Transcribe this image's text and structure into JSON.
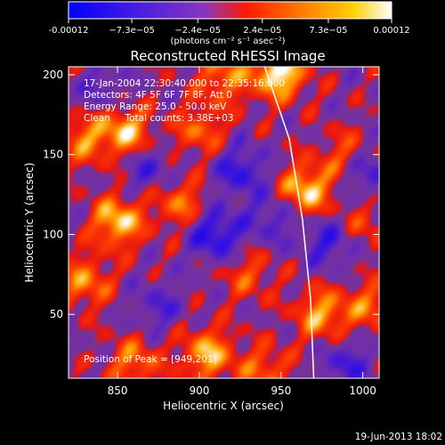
{
  "colorbar": {
    "tick_labels": [
      "-0.00012",
      "−7.3e−05",
      "−2.4e−05",
      "2.4e−05",
      "7.3e−05",
      "0.00012"
    ],
    "tick_values": [
      -0.00012,
      -7.3e-05,
      -2.4e-05,
      2.4e-05,
      7.3e-05,
      0.00012
    ],
    "range": [
      -0.00012,
      0.00012
    ],
    "unit_label": "(photons cm⁻² s⁻¹ asec⁻²)",
    "colormap": [
      "#0000ff",
      "#7a2fd0",
      "#ff1a00",
      "#ff9a00",
      "#ffffff"
    ]
  },
  "chart_data": {
    "type": "heatmap",
    "title": "Reconstructed RHESSI Image",
    "xlabel": "Heliocentric X (arcsec)",
    "ylabel": "Heliocentric Y (arcsec)",
    "xlim": [
      820,
      1010
    ],
    "ylim": [
      10,
      205
    ],
    "x_ticks": [
      850,
      900,
      950,
      1000
    ],
    "y_ticks": [
      50,
      100,
      150,
      200
    ],
    "annotations": [
      "17-Jan-2004 22:30:40.000 to 22:35:16.000",
      "Detectors: 4F 5F 6F 7F 8F, Att 0",
      "Energy Range: 25.0 - 50.0 keV",
      "Clean     Total counts: 3.38E+03"
    ],
    "peak_label": "Position of Peak = [949,201]",
    "peak": {
      "x": 949,
      "y": 201
    },
    "limb": [
      [
        940,
        205
      ],
      [
        955,
        160
      ],
      [
        963,
        110
      ],
      [
        968,
        60
      ],
      [
        970,
        10
      ]
    ],
    "sources": [
      {
        "x": 949,
        "y": 201,
        "v": 1.0
      },
      {
        "x": 915,
        "y": 198,
        "v": 0.6
      },
      {
        "x": 855,
        "y": 165,
        "v": 0.75
      },
      {
        "x": 830,
        "y": 160,
        "v": 0.55
      },
      {
        "x": 900,
        "y": 165,
        "v": 0.5
      },
      {
        "x": 965,
        "y": 128,
        "v": 0.85
      },
      {
        "x": 990,
        "y": 150,
        "v": 0.45
      },
      {
        "x": 850,
        "y": 108,
        "v": 0.85
      },
      {
        "x": 888,
        "y": 120,
        "v": 0.55
      },
      {
        "x": 830,
        "y": 70,
        "v": 0.6
      },
      {
        "x": 975,
        "y": 50,
        "v": 0.7
      },
      {
        "x": 1005,
        "y": 55,
        "v": 0.5
      },
      {
        "x": 930,
        "y": 75,
        "v": 0.4
      },
      {
        "x": 905,
        "y": 25,
        "v": 0.75
      },
      {
        "x": 860,
        "y": 20,
        "v": 0.55
      },
      {
        "x": 940,
        "y": 15,
        "v": 0.5
      },
      {
        "x": 1000,
        "y": 105,
        "v": 0.35
      },
      {
        "x": 910,
        "y": 100,
        "v": -0.7
      },
      {
        "x": 925,
        "y": 140,
        "v": -0.55
      },
      {
        "x": 980,
        "y": 95,
        "v": -0.5
      },
      {
        "x": 1003,
        "y": 140,
        "v": -0.5
      },
      {
        "x": 870,
        "y": 140,
        "v": -0.4
      },
      {
        "x": 875,
        "y": 55,
        "v": -0.35
      },
      {
        "x": 945,
        "y": 110,
        "v": -0.4
      },
      {
        "x": 990,
        "y": 20,
        "v": -0.45
      },
      {
        "x": 840,
        "y": 190,
        "v": -0.3
      }
    ]
  },
  "footer": {
    "timestamp": "19-Jun-2013 18:02"
  }
}
